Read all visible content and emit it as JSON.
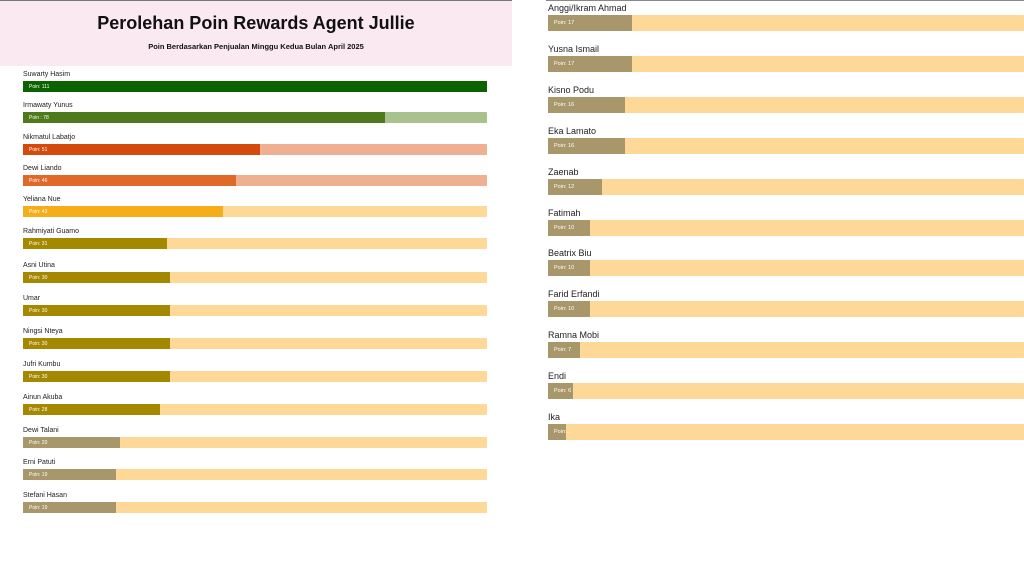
{
  "header": {
    "title": "Perolehan Poin Rewards Agent Jullie",
    "subtitle": "Poin Berdasarkan Penjualan Minggu Kedua Bulan April 2025"
  },
  "chart_data": {
    "type": "bar",
    "title": "Perolehan Poin Rewards Agent Jullie",
    "subtitle": "Poin Berdasarkan Penjualan Minggu Kedua Bulan April 2025",
    "colors": {
      "dark_green": "#0b6300",
      "green": "#4e7a1c",
      "green_track": "#a9c28d",
      "red_orange": "#d44a0c",
      "orange": "#e0692a",
      "salmon_track": "#eeb090",
      "amber": "#f6ad1a",
      "olive": "#a48800",
      "khaki": "#a7976a",
      "cream_track": "#fdd896"
    },
    "agents": [
      {
        "name": "Suwarty Hasim",
        "points": 111,
        "label": "Poin: 111",
        "ratio": 1.0,
        "color": "#0b6300",
        "track": "#0b6300"
      },
      {
        "name": "Irmawaty Yunus",
        "points": 78,
        "label": "Poin : 78",
        "ratio": 0.78,
        "color": "#4e7a1c",
        "track": "#a9c28d"
      },
      {
        "name": "Nikmatul Labatjo",
        "points": 51,
        "label": "Poin: 51",
        "ratio": 0.51,
        "color": "#d44a0c",
        "track": "#eeb090"
      },
      {
        "name": "Dewi Liando",
        "points": 46,
        "label": "Poin: 46",
        "ratio": 0.46,
        "color": "#e0692a",
        "track": "#eeb090"
      },
      {
        "name": "Yeliana Nue",
        "points": 43,
        "label": "Poin: 43",
        "ratio": 0.43,
        "color": "#f6ad1a",
        "track": "#fdd896"
      },
      {
        "name": "Rahmiyati Guamo",
        "points": 31,
        "label": "Poin: 31",
        "ratio": 0.31,
        "color": "#a48800",
        "track": "#fdd896"
      },
      {
        "name": "Asni Utina",
        "points": 30,
        "label": "Poin: 30",
        "ratio": 0.317,
        "color": "#a48800",
        "track": "#fdd896"
      },
      {
        "name": "Umar",
        "points": 30,
        "label": "Poin: 30",
        "ratio": 0.317,
        "color": "#a48800",
        "track": "#fdd896"
      },
      {
        "name": "Ningsi Nteya",
        "points": 30,
        "label": "Poin: 30",
        "ratio": 0.317,
        "color": "#a48800",
        "track": "#fdd896"
      },
      {
        "name": "Jufri Kumbu",
        "points": 30,
        "label": "Poin: 30",
        "ratio": 0.317,
        "color": "#a48800",
        "track": "#fdd896"
      },
      {
        "name": "Ainun Akuba",
        "points": 28,
        "label": "Poin: 28",
        "ratio": 0.295,
        "color": "#a48800",
        "track": "#fdd896"
      },
      {
        "name": "Dewi Talani",
        "points": 20,
        "label": "Poin: 20",
        "ratio": 0.21,
        "color": "#a7976a",
        "track": "#fdd896"
      },
      {
        "name": "Erni Patuti",
        "points": 19,
        "label": "Poin: 19",
        "ratio": 0.2,
        "color": "#a7976a",
        "track": "#fdd896"
      },
      {
        "name": "Stefani Hasan",
        "points": 19,
        "label": "Poin: 19",
        "ratio": 0.2,
        "color": "#a7976a",
        "track": "#fdd896"
      },
      {
        "name": "Anggi/Ikram Ahmad",
        "points": 17,
        "label": "Poin: 17",
        "ratio": 0.176,
        "color": "#a7976a",
        "track": "#fdd896"
      },
      {
        "name": "Yusna Ismail",
        "points": 17,
        "label": "Poin: 17",
        "ratio": 0.176,
        "color": "#a7976a",
        "track": "#fdd896"
      },
      {
        "name": "Kisno Podu",
        "points": 16,
        "label": "Poin: 16",
        "ratio": 0.162,
        "color": "#a7976a",
        "track": "#fdd896"
      },
      {
        "name": "Eka Lamato",
        "points": 16,
        "label": "Poin: 16",
        "ratio": 0.162,
        "color": "#a7976a",
        "track": "#fdd896"
      },
      {
        "name": "Zaenab",
        "points": 12,
        "label": "Poin: 12",
        "ratio": 0.114,
        "color": "#a7976a",
        "track": "#fdd896"
      },
      {
        "name": "Fatimah",
        "points": 10,
        "label": "Poin: 10",
        "ratio": 0.089,
        "color": "#a7976a",
        "track": "#fdd896"
      },
      {
        "name": "Beatrix Biu",
        "points": 10,
        "label": "Poin: 10",
        "ratio": 0.089,
        "color": "#a7976a",
        "track": "#fdd896"
      },
      {
        "name": "Farid Erfandi",
        "points": 10,
        "label": "Poin: 10",
        "ratio": 0.089,
        "color": "#a7976a",
        "track": "#fdd896"
      },
      {
        "name": "Ramna Mobi",
        "points": 7,
        "label": "Poin: 7",
        "ratio": 0.067,
        "color": "#a7976a",
        "track": "#fdd896"
      },
      {
        "name": "Endi",
        "points": 6,
        "label": "Poin: 6",
        "ratio": 0.053,
        "color": "#a7976a",
        "track": "#fdd896"
      },
      {
        "name": "Ika",
        "points": 3,
        "label": "Poin:...",
        "ratio": 0.037,
        "color": "#a7976a",
        "track": "#fdd896"
      }
    ]
  }
}
